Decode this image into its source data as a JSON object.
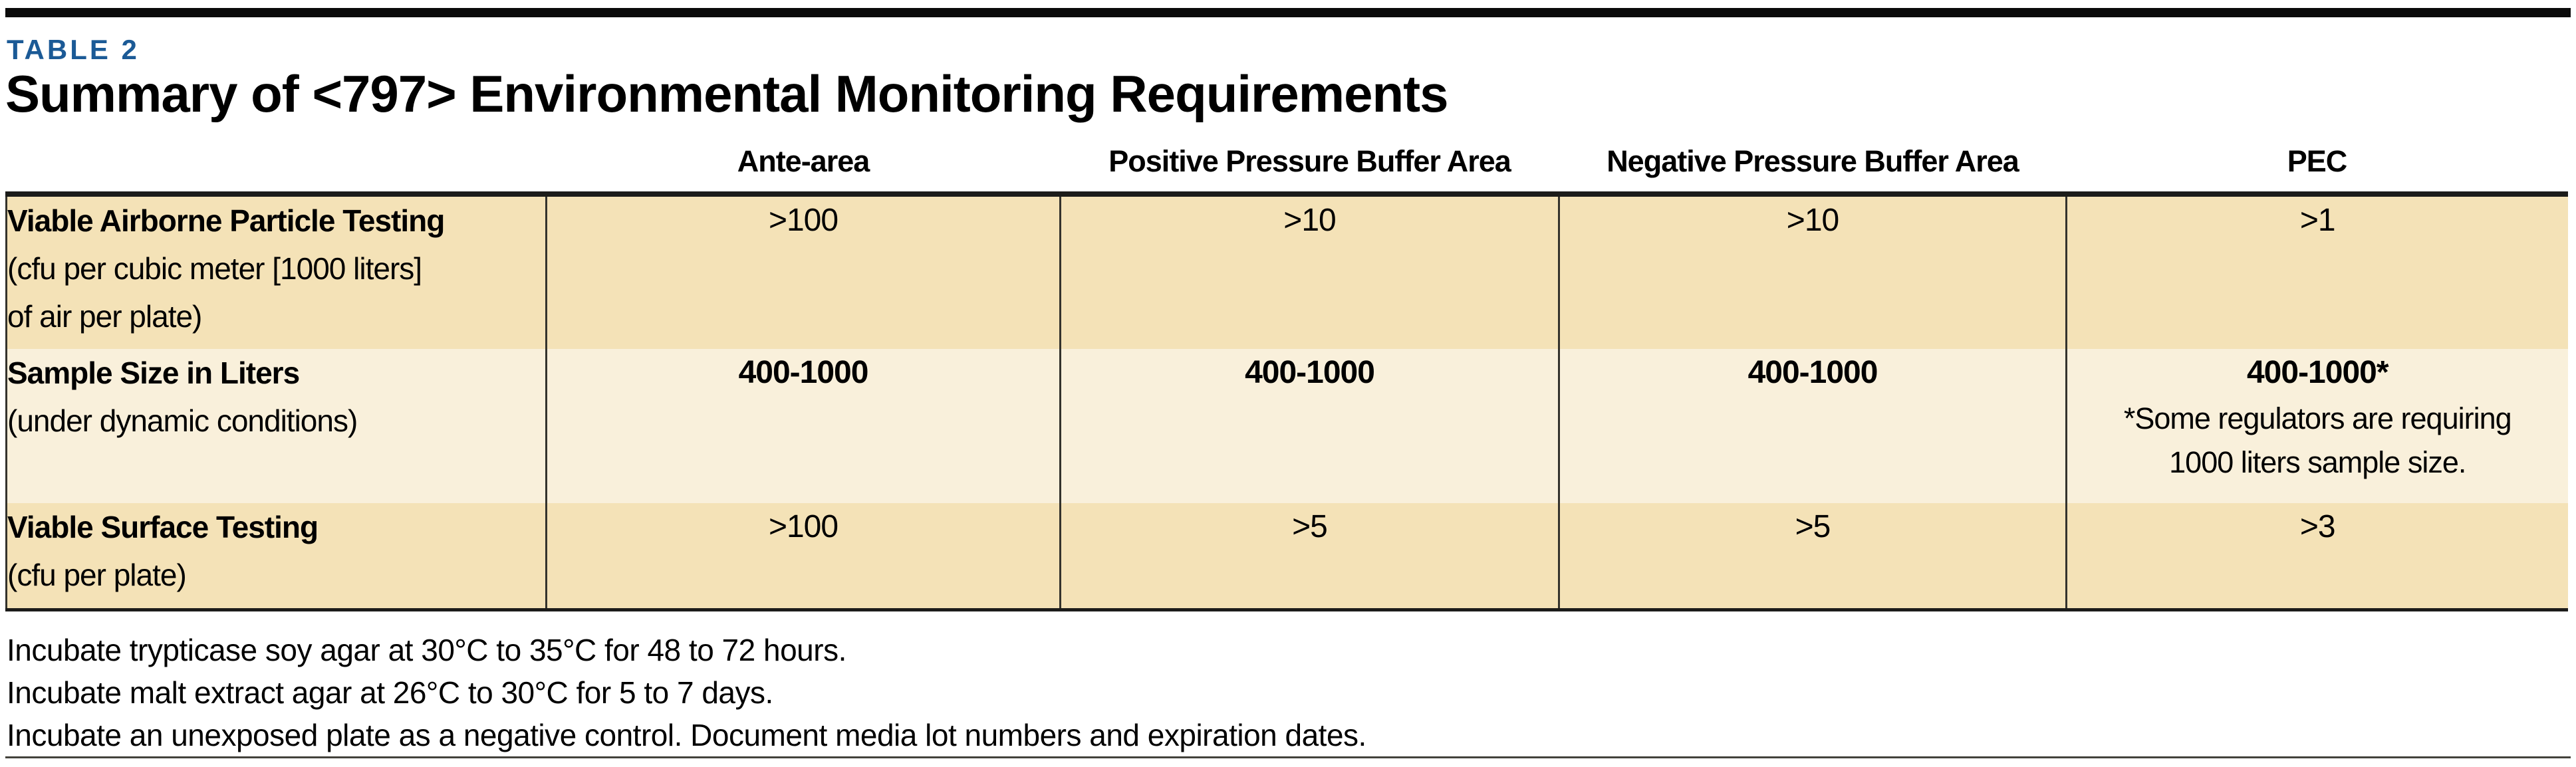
{
  "header": {
    "table_label": "TABLE 2",
    "title": "Summary of <797> Environmental Monitoring Requirements"
  },
  "table": {
    "column_headers": [
      "",
      "Ante-area",
      "Positive Pressure Buffer Area",
      "Negative Pressure Buffer Area",
      "PEC"
    ],
    "rows": [
      {
        "label": "Viable Airborne Particle Testing",
        "sublabel_lines": [
          "(cfu per cubic meter [1000 liters]",
          "of air per plate)"
        ],
        "values": [
          ">100",
          ">10",
          ">10",
          ">1"
        ]
      },
      {
        "label": "Sample Size in Liters",
        "sublabel_lines": [
          "(under dynamic conditions)"
        ],
        "values": [
          "400-1000",
          "400-1000",
          "400-1000",
          "400-1000*"
        ],
        "pec_note_lines": [
          "*Some regulators are requiring",
          "1000 liters sample size."
        ]
      },
      {
        "label": "Viable Surface Testing",
        "sublabel_lines": [
          "(cfu per plate)"
        ],
        "values": [
          ">100",
          ">5",
          ">5",
          ">3"
        ]
      }
    ]
  },
  "footnotes": [
    "Incubate trypticase soy agar at 30°C to 35°C for 48 to 72 hours.",
    "Incubate malt extract agar at 26°C to 30°C for 5 to 7 days.",
    "Incubate an unexposed plate as a negative control. Document media lot numbers and expiration dates."
  ],
  "colors": {
    "accent_blue": "#1b5a96",
    "row_tan": "#f4e2b7",
    "row_cream": "#f9f0db"
  }
}
